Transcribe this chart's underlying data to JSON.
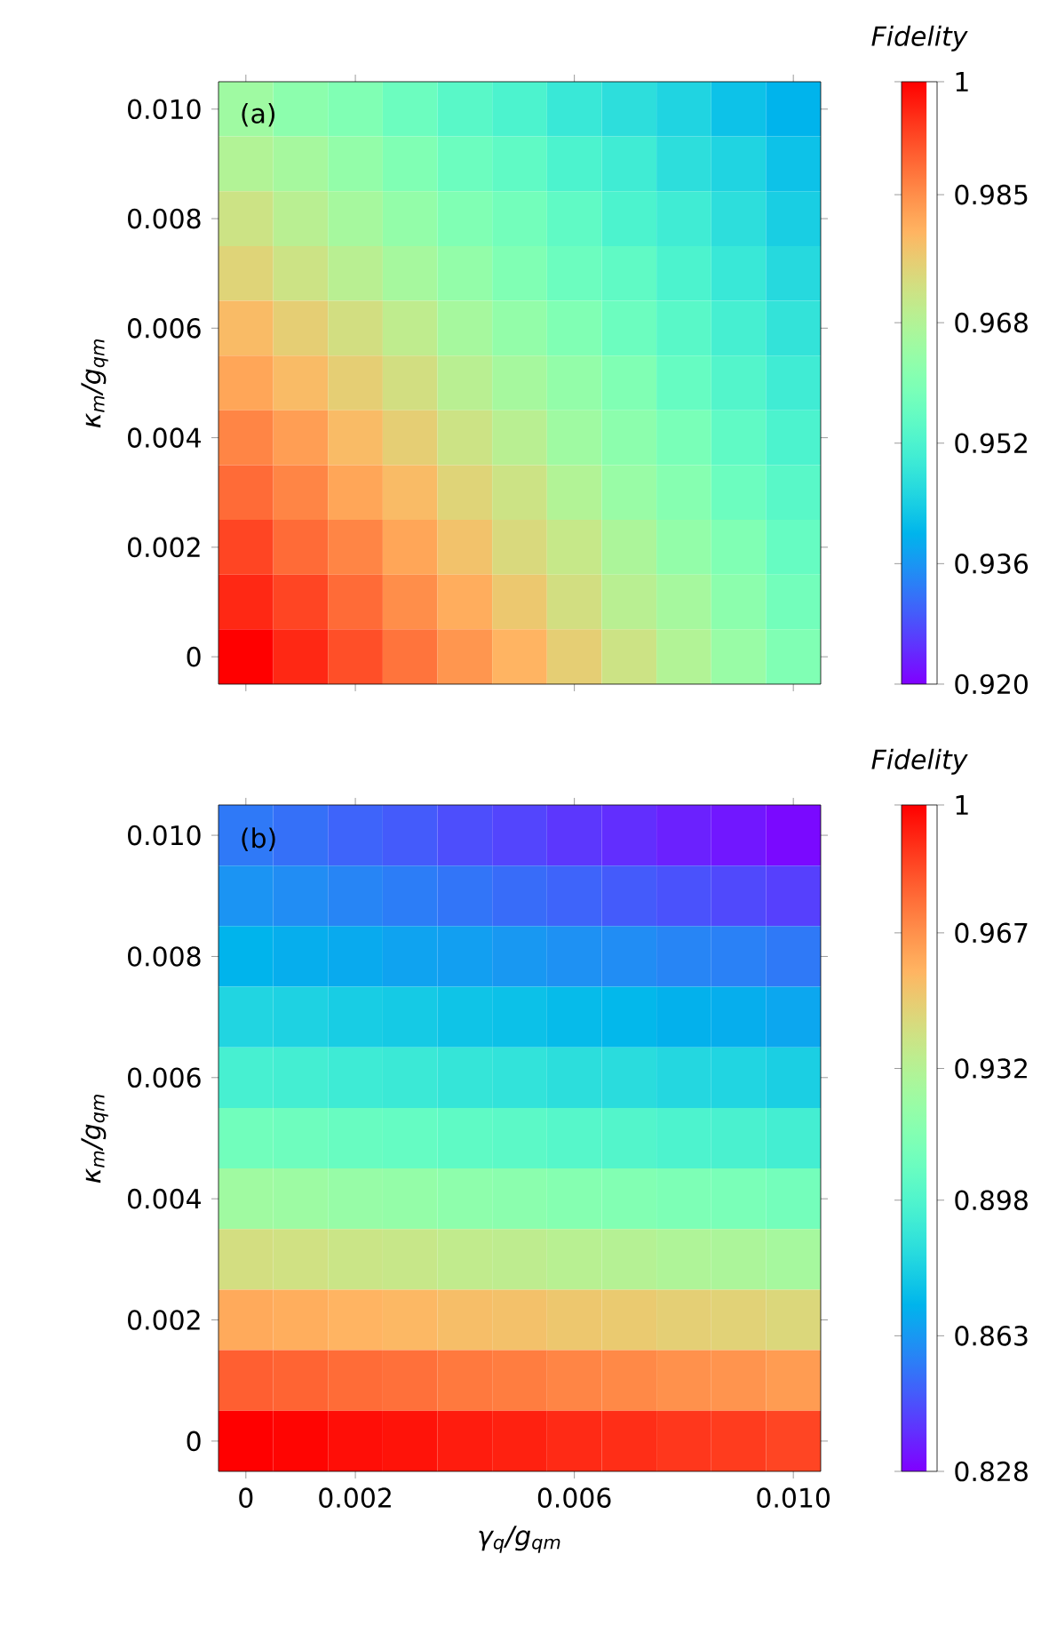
{
  "chart_data": [
    {
      "type": "heatmap",
      "ylabel": "κ$_{m}$/g$_{qm}$",
      "clabel": "Fidelity",
      "annotations": [
        "(a)"
      ],
      "categories": [
        "0",
        null,
        "0.002",
        null,
        null,
        null,
        "0.006",
        null,
        null,
        null,
        "0.010"
      ],
      "y_categories": [
        "0.010",
        null,
        "0.008",
        null,
        "0.006",
        null,
        "0.004",
        null,
        "0.002",
        null,
        "0"
      ],
      "tick_labels": "y",
      "clim": [
        0.92,
        1
      ],
      "cticks": [
        {
          "value": 0.92,
          "label": "0.920"
        },
        0.936,
        0.952,
        0.968,
        0.985,
        1
      ],
      "cells": [
        [
          0.965,
          0.962,
          0.96,
          0.957,
          0.954,
          0.952,
          0.949,
          0.947,
          0.945,
          0.942,
          0.94
        ],
        [
          0.968,
          0.966,
          0.963,
          0.96,
          0.957,
          0.955,
          0.952,
          0.95,
          0.947,
          0.945,
          0.942
        ],
        [
          0.972,
          0.969,
          0.966,
          0.963,
          0.96,
          0.958,
          0.955,
          0.952,
          0.95,
          0.947,
          0.944
        ],
        [
          0.975,
          0.972,
          0.969,
          0.966,
          0.963,
          0.96,
          0.957,
          0.955,
          0.952,
          0.949,
          0.946
        ],
        [
          0.979,
          0.976,
          0.973,
          0.97,
          0.966,
          0.963,
          0.96,
          0.957,
          0.954,
          0.951,
          0.948
        ],
        [
          0.982,
          0.979,
          0.976,
          0.973,
          0.969,
          0.966,
          0.963,
          0.96,
          0.956,
          0.953,
          0.95
        ],
        [
          0.986,
          0.983,
          0.979,
          0.976,
          0.972,
          0.969,
          0.965,
          0.962,
          0.959,
          0.955,
          0.952
        ],
        [
          0.989,
          0.986,
          0.982,
          0.979,
          0.975,
          0.972,
          0.968,
          0.964,
          0.961,
          0.957,
          0.954
        ],
        [
          0.993,
          0.989,
          0.986,
          0.982,
          0.978,
          0.974,
          0.971,
          0.967,
          0.963,
          0.96,
          0.956
        ],
        [
          0.996,
          0.993,
          0.989,
          0.985,
          0.981,
          0.977,
          0.973,
          0.969,
          0.966,
          0.962,
          0.958
        ],
        [
          1.0,
          0.996,
          0.992,
          0.988,
          0.984,
          0.98,
          0.976,
          0.972,
          0.968,
          0.964,
          0.96
        ]
      ]
    },
    {
      "type": "heatmap",
      "xlabel": "γ$_{q}$/g$_{qm}$",
      "ylabel": "κ$_{m}$/g$_{qm}$",
      "clabel": "Fidelity",
      "annotations": [
        "(b)"
      ],
      "categories": [
        "0",
        null,
        "0.002",
        null,
        null,
        null,
        "0.006",
        null,
        null,
        null,
        "0.010"
      ],
      "y_categories": [
        "0.010",
        null,
        "0.008",
        null,
        "0.006",
        null,
        "0.004",
        null,
        "0.002",
        null,
        "0"
      ],
      "clim": [
        0.828,
        1
      ],
      "cticks": [
        0.828,
        0.863,
        0.898,
        0.932,
        0.967,
        1
      ],
      "cells": [
        [
          0.855,
          0.853,
          0.85,
          0.848,
          0.845,
          0.843,
          0.84,
          0.838,
          0.835,
          0.833,
          0.83
        ],
        [
          0.862,
          0.86,
          0.858,
          0.856,
          0.854,
          0.852,
          0.85,
          0.848,
          0.846,
          0.844,
          0.842
        ],
        [
          0.871,
          0.869,
          0.868,
          0.866,
          0.865,
          0.863,
          0.861,
          0.86,
          0.858,
          0.857,
          0.855
        ],
        [
          0.882,
          0.881,
          0.879,
          0.878,
          0.876,
          0.875,
          0.873,
          0.872,
          0.87,
          0.869,
          0.867
        ],
        [
          0.895,
          0.894,
          0.892,
          0.891,
          0.889,
          0.888,
          0.886,
          0.885,
          0.883,
          0.882,
          0.88
        ],
        [
          0.909,
          0.908,
          0.906,
          0.905,
          0.903,
          0.902,
          0.9,
          0.899,
          0.897,
          0.896,
          0.894
        ],
        [
          0.925,
          0.924,
          0.922,
          0.921,
          0.919,
          0.918,
          0.916,
          0.915,
          0.913,
          0.912,
          0.91
        ],
        [
          0.942,
          0.941,
          0.939,
          0.938,
          0.936,
          0.935,
          0.933,
          0.932,
          0.93,
          0.929,
          0.927
        ],
        [
          0.96,
          0.959,
          0.957,
          0.956,
          0.954,
          0.953,
          0.951,
          0.95,
          0.948,
          0.947,
          0.945
        ],
        [
          0.979,
          0.978,
          0.976,
          0.975,
          0.973,
          0.972,
          0.97,
          0.969,
          0.967,
          0.966,
          0.964
        ],
        [
          1.0,
          0.999,
          0.997,
          0.996,
          0.994,
          0.993,
          0.991,
          0.99,
          0.988,
          0.987,
          0.985
        ]
      ]
    }
  ]
}
